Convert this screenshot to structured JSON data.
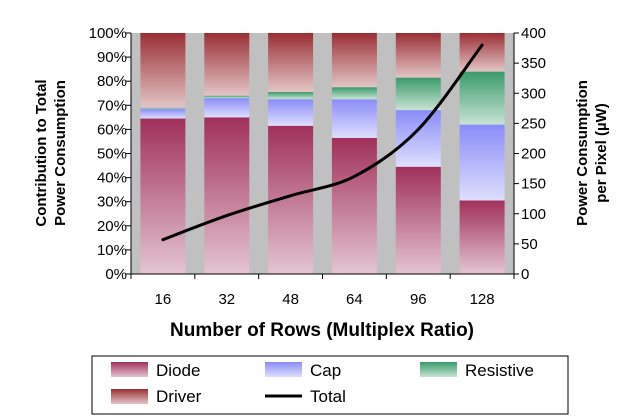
{
  "chart_data": {
    "type": "bar",
    "subtype": "stacked-percent-with-line",
    "title": "",
    "xlabel": "Number of Rows (Multiplex Ratio)",
    "ylabel_left": "Contribution to Total Power Consumption",
    "ylabel_left_lines": [
      "Contribution to Total",
      "Power Consumption"
    ],
    "ylabel_right": "Power Consumption per Pixel (µW)",
    "ylabel_right_lines": [
      "Power Consumption",
      "per Pixel (µW)"
    ],
    "categories": [
      "16",
      "32",
      "48",
      "64",
      "96",
      "128"
    ],
    "ylim_left": [
      0,
      100
    ],
    "yticks_left": [
      "0%",
      "10%",
      "20%",
      "30%",
      "40%",
      "50%",
      "60%",
      "70%",
      "80%",
      "90%",
      "100%"
    ],
    "ylim_right": [
      0,
      400
    ],
    "yticks_right": [
      "0",
      "50",
      "100",
      "150",
      "200",
      "250",
      "300",
      "350",
      "400"
    ],
    "series": [
      {
        "name": "Diode",
        "values": [
          64.5,
          65,
          61.5,
          56.5,
          44.5,
          30.5
        ],
        "color": "#a0305a"
      },
      {
        "name": "Cap",
        "values": [
          4,
          8,
          11,
          16,
          23.5,
          31.5
        ],
        "color": "#8a8cf8"
      },
      {
        "name": "Resistive",
        "values": [
          0.5,
          1,
          3,
          5,
          13.5,
          22
        ],
        "color": "#3a9a6a"
      },
      {
        "name": "Driver",
        "values": [
          31,
          26,
          24.5,
          22.5,
          18.5,
          16
        ],
        "color": "#9a2f35"
      }
    ],
    "line_series": {
      "name": "Total",
      "values": [
        57,
        97,
        130,
        162,
        240,
        380
      ],
      "color": "#000000"
    },
    "plot_background": "#c0c0c0",
    "legend_position": "bottom",
    "grid": false
  }
}
